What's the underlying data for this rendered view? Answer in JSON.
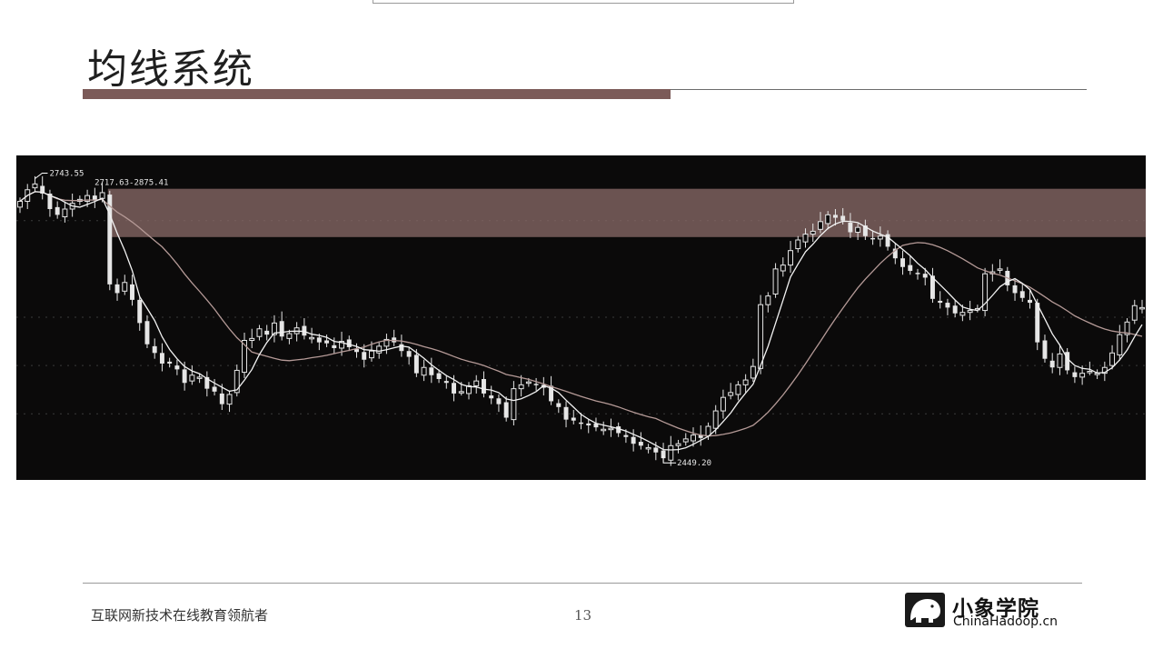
{
  "slide": {
    "title": "均线系统",
    "footer_text": "互联网新技术在线教育领航者",
    "page_number": "13",
    "logo_cn": "小象学院",
    "logo_en": "ChinaHadoop.cn",
    "accent_color": "#7b5a58",
    "band_color": "#8c6c6a"
  },
  "chart_data": {
    "type": "candlestick",
    "annotations": {
      "high_label": "2743.55",
      "range_label": "2717.63-2875.41",
      "low_label": "2449.20"
    },
    "colors": {
      "background": "#0b0a0a",
      "ma_fast": "#f2f2f2",
      "ma_slow": "#b59a97",
      "candle": "#e6e6e6"
    },
    "closes": [
      2720,
      2732,
      2738,
      2728,
      2712,
      2706,
      2712,
      2718,
      2722,
      2726,
      2721,
      2729,
      2634,
      2625,
      2636,
      2618,
      2594,
      2572,
      2563,
      2552,
      2552,
      2546,
      2532,
      2540,
      2538,
      2526,
      2523,
      2510,
      2520,
      2545,
      2576,
      2578,
      2588,
      2582,
      2594,
      2580,
      2583,
      2589,
      2581,
      2579,
      2574,
      2573,
      2568,
      2575,
      2569,
      2564,
      2556,
      2565,
      2570,
      2577,
      2574,
      2565,
      2559,
      2542,
      2548,
      2540,
      2536,
      2532,
      2521,
      2523,
      2529,
      2534,
      2521,
      2516,
      2510,
      2496,
      2526,
      2530,
      2533,
      2530,
      2527,
      2513,
      2507,
      2494,
      2493,
      2490,
      2488,
      2486,
      2484,
      2485,
      2480,
      2476,
      2469,
      2467,
      2465,
      2460,
      2454,
      2467,
      2469,
      2474,
      2478,
      2475,
      2487,
      2503,
      2517,
      2522,
      2530,
      2535,
      2549,
      2613,
      2622,
      2650,
      2654,
      2669,
      2680,
      2686,
      2689,
      2699,
      2706,
      2703,
      2700,
      2688,
      2693,
      2684,
      2681,
      2684,
      2673,
      2661,
      2652,
      2648,
      2645,
      2641,
      2619,
      2615,
      2610,
      2604,
      2605,
      2607,
      2609,
      2645,
      2647,
      2650,
      2633,
      2625,
      2620,
      2615,
      2574,
      2557,
      2548,
      2562,
      2545,
      2538,
      2542,
      2544,
      2542,
      2548,
      2563,
      2582,
      2595,
      2612,
      2610
    ]
  }
}
